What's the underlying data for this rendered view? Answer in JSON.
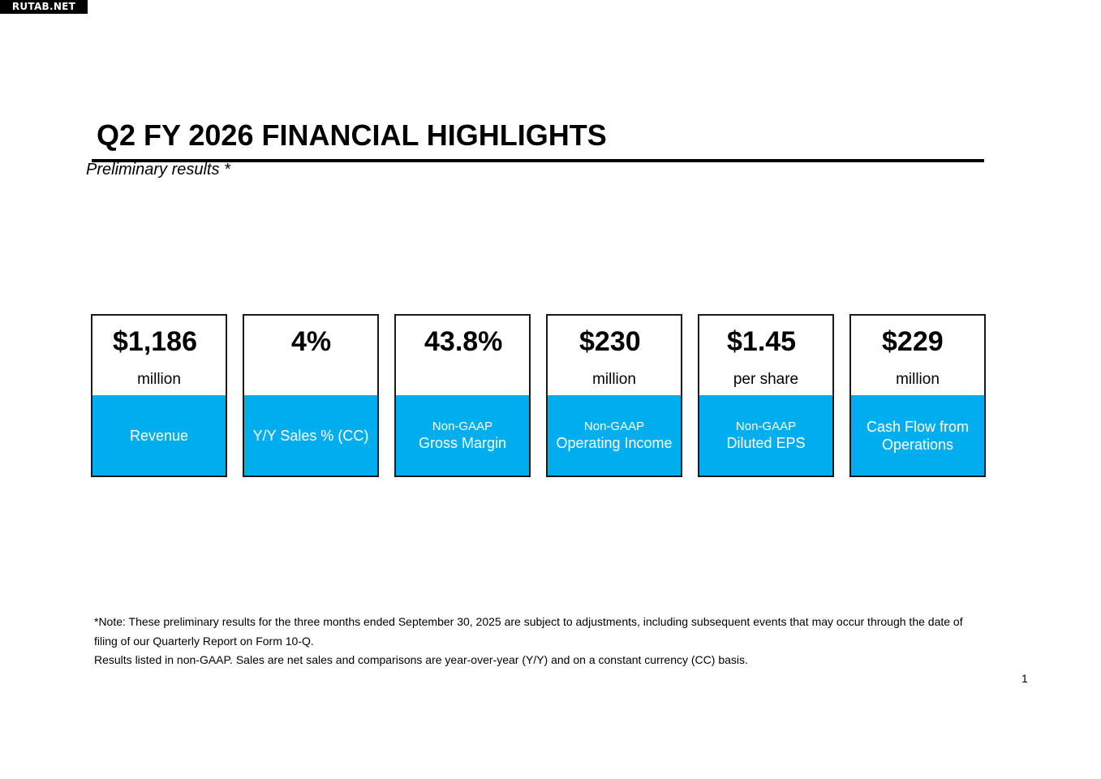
{
  "watermark": "RUTAB.NET",
  "header": {
    "title": "Q2 FY 2026 FINANCIAL HIGHLIGHTS",
    "subtitle": "Preliminary results *"
  },
  "cards": [
    {
      "value": "$1,186",
      "unit": "million",
      "prefix": "",
      "label": "Revenue"
    },
    {
      "value": "4%",
      "unit": "",
      "prefix": "",
      "label": "Y/Y Sales % (CC)"
    },
    {
      "value": "43.8%",
      "unit": "",
      "prefix": "Non-GAAP",
      "label": "Gross Margin"
    },
    {
      "value": "$230",
      "unit": "million",
      "prefix": "Non-GAAP",
      "label": "Operating Income"
    },
    {
      "value": "$1.45",
      "unit": "per share",
      "prefix": "Non-GAAP",
      "label": "Diluted EPS"
    },
    {
      "value": "$229",
      "unit": "million",
      "prefix": "",
      "label": "Cash Flow from Operations"
    }
  ],
  "colors": {
    "accent": "#00aeef",
    "border": "#1a1a1a"
  },
  "footer": {
    "note_line1": "*Note: These preliminary results for the three months ended September 30, 2025 are subject to adjustments, including subsequent events that may occur through the date of filing of our Quarterly Report on Form 10-Q.",
    "note_line2": "Results listed in non-GAAP. Sales are net sales and comparisons are year-over-year (Y/Y) and on a constant currency (CC) basis.",
    "page_number": "1"
  }
}
